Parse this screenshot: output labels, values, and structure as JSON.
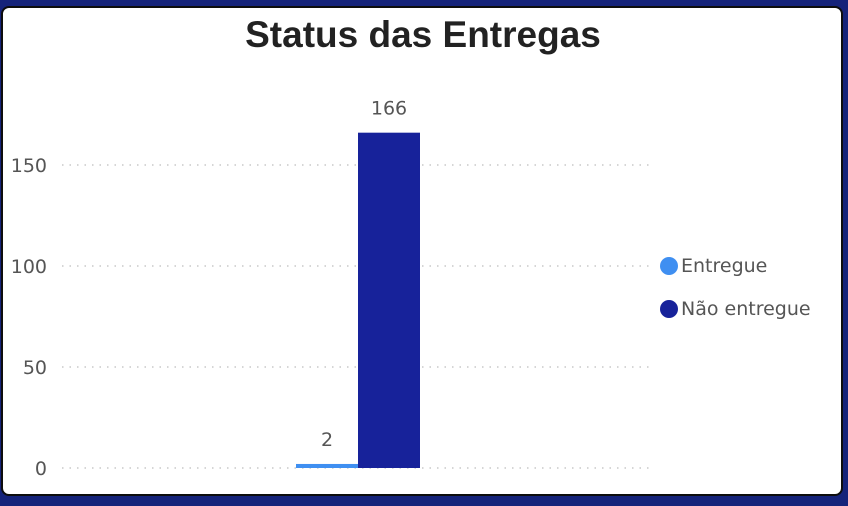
{
  "chart_data": {
    "type": "bar",
    "title": "Status das Entregas",
    "categories": [
      ""
    ],
    "series": [
      {
        "name": "Entregue",
        "values": [
          2
        ],
        "color": "#3f8ff1"
      },
      {
        "name": "Não entregue",
        "values": [
          166
        ],
        "color": "#17229a"
      }
    ],
    "ylim": [
      0,
      180
    ],
    "yticks": [
      0,
      50,
      100,
      150
    ],
    "xlabel": "",
    "ylabel": "",
    "grid": "horizontal dotted",
    "legend_position": "right",
    "data_labels": true
  }
}
